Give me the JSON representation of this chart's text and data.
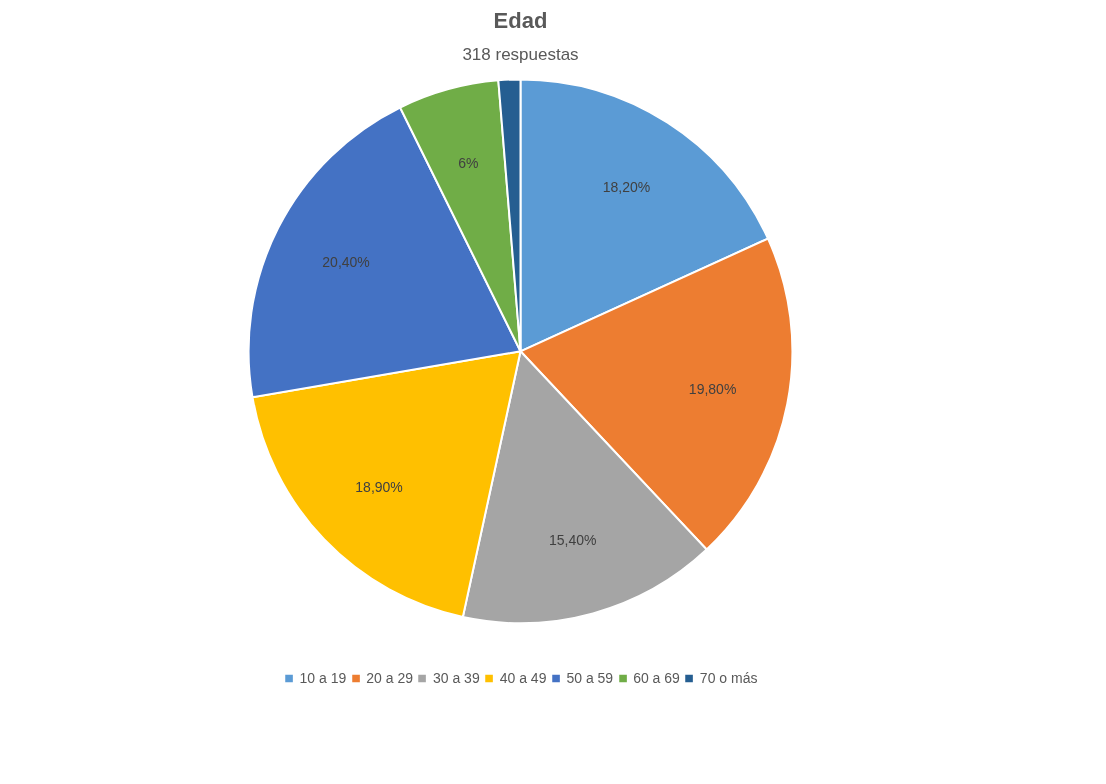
{
  "chart_data": {
    "type": "pie",
    "title": "Edad",
    "subtitle": "318 respuestas",
    "categories": [
      "10 a 19",
      "20 a 29",
      "30 a 39",
      "40 a 49",
      "50 a 59",
      "60 a 69",
      "70 o más"
    ],
    "values": [
      18.2,
      19.8,
      15.4,
      18.9,
      20.4,
      6,
      1.3
    ],
    "value_labels": [
      "18,20%",
      "19,80%",
      "15,40%",
      "18,90%",
      "20,40%",
      "6%",
      null
    ],
    "colors": [
      "#5b9bd5",
      "#ed7d31",
      "#a5a5a5",
      "#ffc000",
      "#4472c4",
      "#70ad47",
      "#255e91"
    ],
    "legend": "bottom"
  }
}
